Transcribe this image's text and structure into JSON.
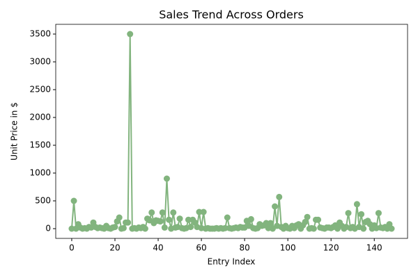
{
  "chart_data": {
    "type": "line",
    "title": "Sales Trend Across Orders",
    "xlabel": "Entry Index",
    "ylabel": "Unit Price in $",
    "color": "#82b47e",
    "marker": true,
    "x": [
      0,
      1,
      2,
      3,
      4,
      5,
      6,
      7,
      8,
      9,
      10,
      11,
      12,
      13,
      14,
      15,
      16,
      17,
      18,
      19,
      20,
      21,
      22,
      23,
      24,
      25,
      26,
      27,
      28,
      29,
      30,
      31,
      32,
      33,
      34,
      35,
      36,
      37,
      38,
      39,
      40,
      41,
      42,
      43,
      44,
      45,
      46,
      47,
      48,
      49,
      50,
      51,
      52,
      53,
      54,
      55,
      56,
      57,
      58,
      59,
      60,
      61,
      62,
      63,
      64,
      65,
      66,
      67,
      68,
      69,
      70,
      71,
      72,
      73,
      74,
      75,
      76,
      77,
      78,
      79,
      80,
      81,
      82,
      83,
      84,
      85,
      86,
      87,
      88,
      89,
      90,
      91,
      92,
      93,
      94,
      95,
      96,
      97,
      98,
      99,
      100,
      101,
      102,
      103,
      104,
      105,
      106,
      107,
      108,
      109,
      110,
      111,
      112,
      113,
      114,
      115,
      116,
      117,
      118,
      119,
      120,
      121,
      122,
      123,
      124,
      125,
      126,
      127,
      128,
      129,
      130,
      131,
      132,
      133,
      134,
      135,
      136,
      137,
      138,
      139,
      140,
      141,
      142,
      143,
      144,
      145,
      146,
      147,
      148
    ],
    "values": [
      0,
      500,
      0,
      80,
      20,
      0,
      10,
      0,
      30,
      20,
      110,
      30,
      10,
      20,
      10,
      0,
      50,
      10,
      0,
      20,
      30,
      130,
      200,
      0,
      10,
      110,
      110,
      3500,
      0,
      10,
      0,
      20,
      10,
      30,
      0,
      180,
      150,
      290,
      100,
      150,
      140,
      130,
      290,
      20,
      900,
      160,
      0,
      290,
      20,
      30,
      180,
      10,
      0,
      10,
      160,
      30,
      160,
      110,
      30,
      300,
      10,
      300,
      0,
      10,
      0,
      0,
      0,
      10,
      0,
      10,
      0,
      10,
      200,
      10,
      0,
      10,
      20,
      10,
      30,
      20,
      20,
      140,
      50,
      170,
      10,
      0,
      10,
      80,
      50,
      60,
      100,
      10,
      100,
      0,
      400,
      50,
      570,
      30,
      0,
      50,
      10,
      0,
      50,
      10,
      60,
      80,
      0,
      60,
      120,
      210,
      0,
      10,
      0,
      160,
      160,
      20,
      10,
      0,
      20,
      20,
      10,
      30,
      60,
      0,
      110,
      50,
      0,
      30,
      280,
      10,
      30,
      0,
      440,
      30,
      260,
      0,
      120,
      140,
      80,
      0,
      60,
      10,
      280,
      20,
      10,
      30,
      0,
      80,
      0
    ],
    "xlim": [
      -7.4,
      155.4
    ],
    "ylim": [
      -175,
      3675
    ],
    "xticks": [
      0,
      20,
      40,
      60,
      80,
      100,
      120,
      140
    ],
    "yticks": [
      0,
      500,
      1000,
      1500,
      2000,
      2500,
      3000,
      3500
    ]
  }
}
